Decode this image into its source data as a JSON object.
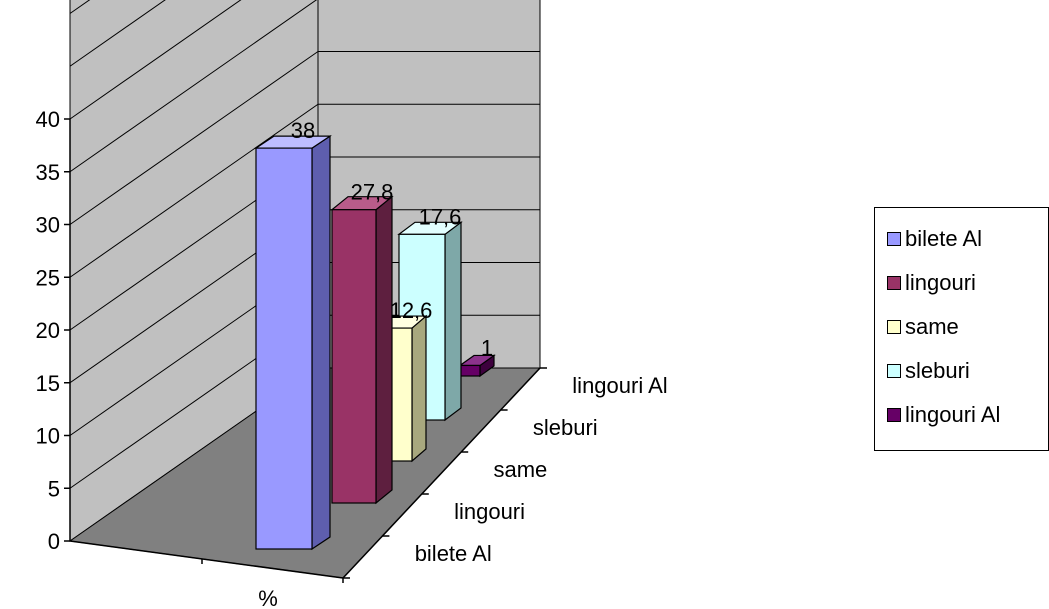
{
  "chart_data": {
    "type": "bar",
    "x_category": "%",
    "series": [
      {
        "name": "bilete Al",
        "value": 38,
        "value_label": "38",
        "color": "#9999FF",
        "side_color": "#5E5EAE",
        "top_color": "#BDBDFF"
      },
      {
        "name": "lingouri",
        "value": 27.8,
        "value_label": "27,8",
        "color": "#993366",
        "side_color": "#5E1F3F",
        "top_color": "#B85C8A"
      },
      {
        "name": "same",
        "value": 12.6,
        "value_label": "12,6",
        "color": "#FFFFCC",
        "side_color": "#A8A87E",
        "top_color": "#FFFFE2"
      },
      {
        "name": "sleburi",
        "value": 17.6,
        "value_label": "17,6",
        "color": "#CCFFFF",
        "side_color": "#7EA8A8",
        "top_color": "#E2FFFF"
      },
      {
        "name": "lingouri Al",
        "value": 1,
        "value_label": "1",
        "color": "#660066",
        "side_color": "#3D003D",
        "top_color": "#8C338C"
      }
    ],
    "depth_labels": [
      "bilete Al",
      "lingouri",
      "same",
      "sleburi",
      "lingouri Al"
    ],
    "y_ticks": [
      "0",
      "5",
      "10",
      "15",
      "20",
      "25",
      "30",
      "35",
      "40"
    ],
    "ylim": [
      0,
      40
    ],
    "ymax_display": 60,
    "grid": true,
    "legend_position": "right",
    "wall_color": "#C0C0C0",
    "floor_color": "#808080"
  }
}
